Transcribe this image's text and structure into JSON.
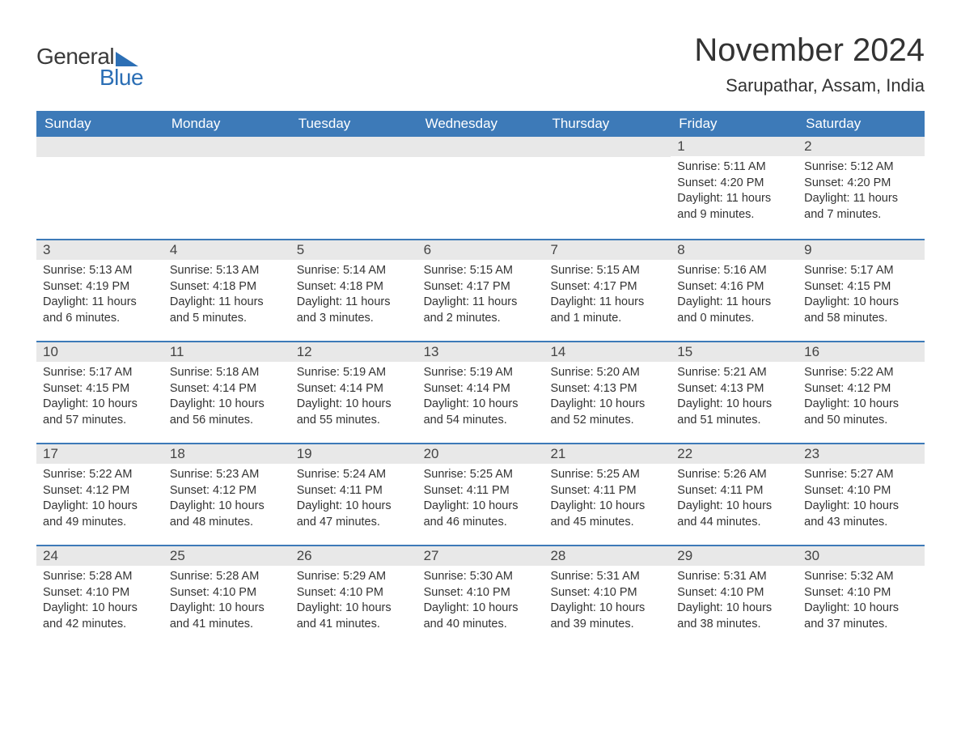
{
  "logo": {
    "text_general": "General",
    "text_blue": "Blue"
  },
  "title": "November 2024",
  "location": "Sarupathar, Assam, India",
  "colors": {
    "header_blue": "#3d7ab8",
    "logo_blue": "#2c6fb5",
    "day_number_bg": "#e8e8e8",
    "text_dark": "#333333",
    "border_blue": "#3d7ab8",
    "background": "#ffffff"
  },
  "typography": {
    "title_fontsize": 40,
    "location_fontsize": 22,
    "header_fontsize": 17,
    "daynum_fontsize": 17,
    "content_fontsize": 14.5,
    "font_family": "Arial"
  },
  "day_headers": [
    "Sunday",
    "Monday",
    "Tuesday",
    "Wednesday",
    "Thursday",
    "Friday",
    "Saturday"
  ],
  "weeks": [
    [
      {
        "empty": true
      },
      {
        "empty": true
      },
      {
        "empty": true
      },
      {
        "empty": true
      },
      {
        "empty": true
      },
      {
        "day": "1",
        "sunrise": "Sunrise: 5:11 AM",
        "sunset": "Sunset: 4:20 PM",
        "daylight": "Daylight: 11 hours and 9 minutes."
      },
      {
        "day": "2",
        "sunrise": "Sunrise: 5:12 AM",
        "sunset": "Sunset: 4:20 PM",
        "daylight": "Daylight: 11 hours and 7 minutes."
      }
    ],
    [
      {
        "day": "3",
        "sunrise": "Sunrise: 5:13 AM",
        "sunset": "Sunset: 4:19 PM",
        "daylight": "Daylight: 11 hours and 6 minutes."
      },
      {
        "day": "4",
        "sunrise": "Sunrise: 5:13 AM",
        "sunset": "Sunset: 4:18 PM",
        "daylight": "Daylight: 11 hours and 5 minutes."
      },
      {
        "day": "5",
        "sunrise": "Sunrise: 5:14 AM",
        "sunset": "Sunset: 4:18 PM",
        "daylight": "Daylight: 11 hours and 3 minutes."
      },
      {
        "day": "6",
        "sunrise": "Sunrise: 5:15 AM",
        "sunset": "Sunset: 4:17 PM",
        "daylight": "Daylight: 11 hours and 2 minutes."
      },
      {
        "day": "7",
        "sunrise": "Sunrise: 5:15 AM",
        "sunset": "Sunset: 4:17 PM",
        "daylight": "Daylight: 11 hours and 1 minute."
      },
      {
        "day": "8",
        "sunrise": "Sunrise: 5:16 AM",
        "sunset": "Sunset: 4:16 PM",
        "daylight": "Daylight: 11 hours and 0 minutes."
      },
      {
        "day": "9",
        "sunrise": "Sunrise: 5:17 AM",
        "sunset": "Sunset: 4:15 PM",
        "daylight": "Daylight: 10 hours and 58 minutes."
      }
    ],
    [
      {
        "day": "10",
        "sunrise": "Sunrise: 5:17 AM",
        "sunset": "Sunset: 4:15 PM",
        "daylight": "Daylight: 10 hours and 57 minutes."
      },
      {
        "day": "11",
        "sunrise": "Sunrise: 5:18 AM",
        "sunset": "Sunset: 4:14 PM",
        "daylight": "Daylight: 10 hours and 56 minutes."
      },
      {
        "day": "12",
        "sunrise": "Sunrise: 5:19 AM",
        "sunset": "Sunset: 4:14 PM",
        "daylight": "Daylight: 10 hours and 55 minutes."
      },
      {
        "day": "13",
        "sunrise": "Sunrise: 5:19 AM",
        "sunset": "Sunset: 4:14 PM",
        "daylight": "Daylight: 10 hours and 54 minutes."
      },
      {
        "day": "14",
        "sunrise": "Sunrise: 5:20 AM",
        "sunset": "Sunset: 4:13 PM",
        "daylight": "Daylight: 10 hours and 52 minutes."
      },
      {
        "day": "15",
        "sunrise": "Sunrise: 5:21 AM",
        "sunset": "Sunset: 4:13 PM",
        "daylight": "Daylight: 10 hours and 51 minutes."
      },
      {
        "day": "16",
        "sunrise": "Sunrise: 5:22 AM",
        "sunset": "Sunset: 4:12 PM",
        "daylight": "Daylight: 10 hours and 50 minutes."
      }
    ],
    [
      {
        "day": "17",
        "sunrise": "Sunrise: 5:22 AM",
        "sunset": "Sunset: 4:12 PM",
        "daylight": "Daylight: 10 hours and 49 minutes."
      },
      {
        "day": "18",
        "sunrise": "Sunrise: 5:23 AM",
        "sunset": "Sunset: 4:12 PM",
        "daylight": "Daylight: 10 hours and 48 minutes."
      },
      {
        "day": "19",
        "sunrise": "Sunrise: 5:24 AM",
        "sunset": "Sunset: 4:11 PM",
        "daylight": "Daylight: 10 hours and 47 minutes."
      },
      {
        "day": "20",
        "sunrise": "Sunrise: 5:25 AM",
        "sunset": "Sunset: 4:11 PM",
        "daylight": "Daylight: 10 hours and 46 minutes."
      },
      {
        "day": "21",
        "sunrise": "Sunrise: 5:25 AM",
        "sunset": "Sunset: 4:11 PM",
        "daylight": "Daylight: 10 hours and 45 minutes."
      },
      {
        "day": "22",
        "sunrise": "Sunrise: 5:26 AM",
        "sunset": "Sunset: 4:11 PM",
        "daylight": "Daylight: 10 hours and 44 minutes."
      },
      {
        "day": "23",
        "sunrise": "Sunrise: 5:27 AM",
        "sunset": "Sunset: 4:10 PM",
        "daylight": "Daylight: 10 hours and 43 minutes."
      }
    ],
    [
      {
        "day": "24",
        "sunrise": "Sunrise: 5:28 AM",
        "sunset": "Sunset: 4:10 PM",
        "daylight": "Daylight: 10 hours and 42 minutes."
      },
      {
        "day": "25",
        "sunrise": "Sunrise: 5:28 AM",
        "sunset": "Sunset: 4:10 PM",
        "daylight": "Daylight: 10 hours and 41 minutes."
      },
      {
        "day": "26",
        "sunrise": "Sunrise: 5:29 AM",
        "sunset": "Sunset: 4:10 PM",
        "daylight": "Daylight: 10 hours and 41 minutes."
      },
      {
        "day": "27",
        "sunrise": "Sunrise: 5:30 AM",
        "sunset": "Sunset: 4:10 PM",
        "daylight": "Daylight: 10 hours and 40 minutes."
      },
      {
        "day": "28",
        "sunrise": "Sunrise: 5:31 AM",
        "sunset": "Sunset: 4:10 PM",
        "daylight": "Daylight: 10 hours and 39 minutes."
      },
      {
        "day": "29",
        "sunrise": "Sunrise: 5:31 AM",
        "sunset": "Sunset: 4:10 PM",
        "daylight": "Daylight: 10 hours and 38 minutes."
      },
      {
        "day": "30",
        "sunrise": "Sunrise: 5:32 AM",
        "sunset": "Sunset: 4:10 PM",
        "daylight": "Daylight: 10 hours and 37 minutes."
      }
    ]
  ]
}
